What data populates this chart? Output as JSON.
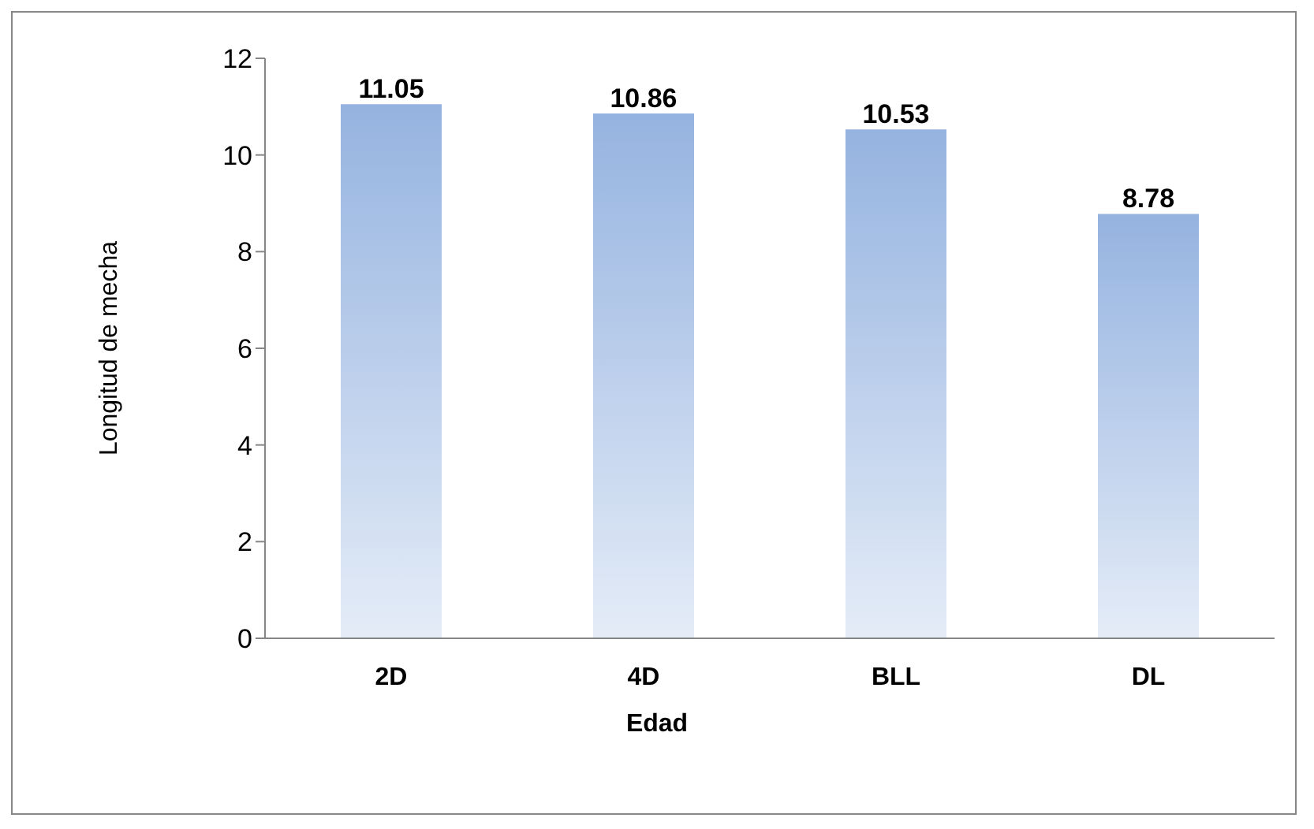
{
  "chart_data": {
    "type": "bar",
    "xlabel": "Edad",
    "ylabel": "Longitud de mecha",
    "categories": [
      "2D",
      "4D",
      "BLL",
      "DL"
    ],
    "values": [
      11.05,
      10.86,
      10.53,
      8.78
    ],
    "color": "#95b3e0",
    "ylim": [
      0,
      12
    ],
    "yticks": [
      0,
      2,
      4,
      6,
      8,
      10,
      12
    ],
    "grid": false,
    "data_labels": true
  }
}
